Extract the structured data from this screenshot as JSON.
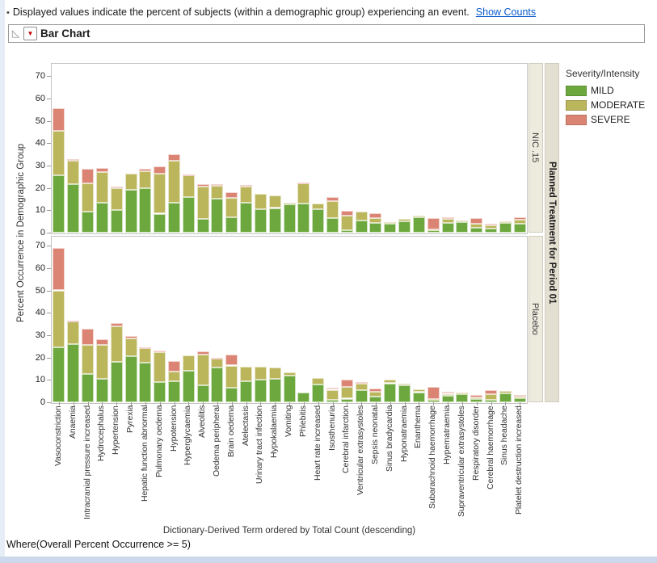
{
  "note": {
    "bullet": "•",
    "text": "Displayed values indicate the percent of subjects (within a demographic group) experiencing an event.",
    "link": "Show Counts"
  },
  "report": {
    "title": "Bar Chart"
  },
  "footer": {
    "where": "Where(Overall Percent Occurrence >= 5)"
  },
  "chart_data": {
    "type": "bar",
    "stacked": true,
    "ylabel": "Percent Occurrence in Demographic Group",
    "xlabel": "Dictionary-Derived Term ordered by Total Count (descending)",
    "ylim": [
      0,
      75
    ],
    "yticks": [
      0,
      10,
      20,
      30,
      40,
      50,
      60,
      70
    ],
    "grid": false,
    "group_label": "Planned Treatment for Period 01",
    "legend": {
      "title": "Severity/Intensity",
      "position": "right",
      "entries": [
        {
          "label": "MILD",
          "color": "#6DA83E"
        },
        {
          "label": "MODERATE",
          "color": "#BBB55C"
        },
        {
          "label": "SEVERE",
          "color": "#DB8473"
        }
      ]
    },
    "categories": [
      "Vasoconstriction",
      "Anaemia",
      "Intracranial pressure increased",
      "Hydrocephalus",
      "Hypertension",
      "Pyrexia",
      "Hepatic function abnormal",
      "Pulmonary oedema",
      "Hypotension",
      "Hyperglycaemia",
      "Alveolitis",
      "Oedema peripheral",
      "Brain oedema",
      "Atelectasis",
      "Urinary tract infection",
      "Hypokalaemia",
      "Vomiting",
      "Phlebitis",
      "Heart rate increased",
      "Isosthenuria",
      "Cerebral infarction",
      "Ventricular extrasystoles",
      "Sepsis neonatal",
      "Sinus bradycardia",
      "Hyponatraemia",
      "Enanthema",
      "Subarachnoid haemorrhage",
      "Hypernatraemia",
      "Supraventricular extrasystoles",
      "Respiratory disorder",
      "Cerebral haemorrhage",
      "Sinus headache",
      "Platelet destruction increased"
    ],
    "panels": [
      {
        "name": "NIC .15",
        "series": [
          {
            "name": "MILD",
            "values": [
              25.5,
              21.5,
              9.5,
              13.5,
              10,
              19,
              20,
              8.5,
              13.5,
              16,
              6,
              15,
              7,
              13.5,
              10.5,
              11,
              12.5,
              13,
              10.5,
              6.5,
              1,
              5.5,
              4.3,
              4,
              5,
              6.8,
              1,
              4.3,
              4.7,
              2.3,
              1.7,
              4.3,
              3.9
            ]
          },
          {
            "name": "MODERATE",
            "values": [
              20,
              10.5,
              12.5,
              13.5,
              10,
              7.5,
              7.5,
              18,
              18.5,
              9.5,
              14.5,
              6,
              8.5,
              7,
              7,
              5.5,
              1,
              9,
              2.5,
              7.5,
              6.7,
              4,
              2.2,
              0.7,
              1.3,
              0.9,
              0.5,
              2,
              0.8,
              1.6,
              1.6,
              0.8,
              2
            ]
          },
          {
            "name": "SEVERE",
            "values": [
              10,
              0.7,
              6.5,
              2,
              0.7,
              0,
              1,
              3,
              3,
              0.5,
              1,
              0.5,
              2.5,
              0.8,
              0,
              0,
              0,
              0.5,
              0,
              2,
              2.2,
              0,
              2.3,
              0,
              0,
              0,
              5,
              0.7,
              0,
              2.6,
              0.6,
              0,
              0.8
            ]
          }
        ]
      },
      {
        "name": "Placebo",
        "series": [
          {
            "name": "MILD",
            "values": [
              24.5,
              26,
              12.5,
              10.5,
              18,
              20.5,
              17.8,
              9,
              9.3,
              14,
              7.5,
              15.5,
              6.4,
              9.5,
              10,
              10.5,
              12,
              4.5,
              8,
              1.2,
              1.6,
              5.6,
              2.4,
              8.5,
              7.5,
              4.5,
              1,
              2.8,
              3.5,
              1.3,
              1.2,
              3.9,
              1.8
            ]
          },
          {
            "name": "MODERATE",
            "values": [
              25.5,
              10,
              13,
              15,
              16,
              8,
              6.3,
              13.5,
              4.5,
              7,
              13.8,
              4,
              10,
              6.5,
              6,
              5,
              1.5,
              0,
              3,
              4.4,
              5.1,
              2.7,
              2.2,
              1.5,
              1,
              1.3,
              0.6,
              1,
              1,
              0.9,
              2.4,
              1,
              0.7
            ]
          },
          {
            "name": "SEVERE",
            "values": [
              19,
              0.6,
              7.3,
              2.8,
              1.5,
              1,
              0.6,
              0.7,
              4.5,
              0,
              1.3,
              0.5,
              5,
              0,
              0,
              0,
              0,
              0,
              0,
              0.8,
              3.3,
              0.8,
              1.7,
              0,
              0,
              0,
              5.4,
              0.8,
              0,
              0.9,
              2,
              0,
              0.6
            ]
          }
        ]
      }
    ]
  }
}
